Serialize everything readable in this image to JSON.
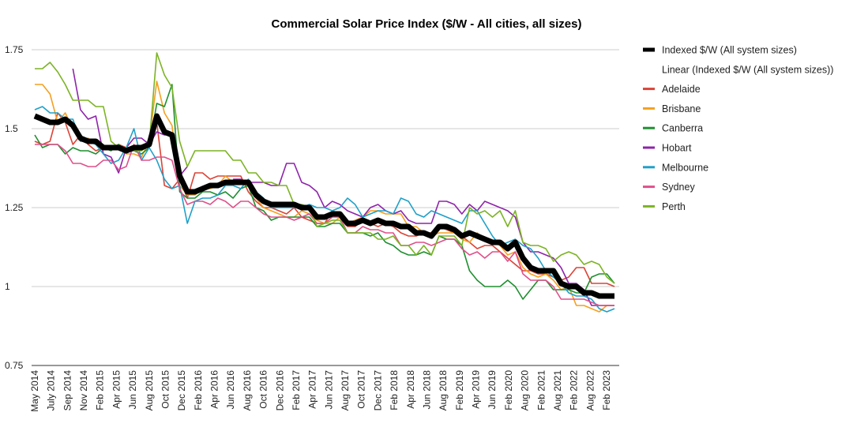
{
  "chart_data": {
    "type": "line",
    "title": "Commercial Solar Price Index ($/W - All cities, all sizes)",
    "xlabel": "",
    "ylabel": "",
    "ylim": [
      0.75,
      1.75
    ],
    "y_ticks": [
      "0.75",
      "1",
      "1.25",
      "1.5",
      "1.75"
    ],
    "y_tick_values": [
      0.75,
      1.0,
      1.25,
      1.5,
      1.75
    ],
    "grid": true,
    "legend_position": "right",
    "x_start": "2014-05",
    "x_tick_labels": [
      "May 2014",
      "July 2014",
      "Sep 2014",
      "Nov 2014",
      "Feb 2015",
      "Apr 2015",
      "Jun 2015",
      "Aug 2015",
      "Oct 2015",
      "Dec 2015",
      "Feb 2016",
      "Apr 2016",
      "Jun 2016",
      "Aug 2016",
      "Oct 2016",
      "Dec 2016",
      "Feb 2017",
      "Apr 2017",
      "Jun 2017",
      "Aug 2017",
      "Oct 2017",
      "Dec 2017",
      "Feb 2018",
      "Apr 2018",
      "Jun 2018",
      "Aug 2018",
      "Feb 2019",
      "Apr 2019",
      "Jun 2019",
      "Feb 2020",
      "Aug 2020",
      "Feb 2021",
      "Aug 2021",
      "Feb 2022",
      "Aug 2022",
      "Feb 2023"
    ],
    "series": [
      {
        "name": "Indexed $/W (All system sizes)",
        "color": "#000000",
        "width": 7,
        "values": [
          1.54,
          1.53,
          1.52,
          1.52,
          1.53,
          1.51,
          1.47,
          1.46,
          1.46,
          1.44,
          1.44,
          1.44,
          1.43,
          1.44,
          1.44,
          1.45,
          1.54,
          1.49,
          1.48,
          1.35,
          1.3,
          1.3,
          1.31,
          1.32,
          1.32,
          1.33,
          1.33,
          1.33,
          1.33,
          1.29,
          1.27,
          1.26,
          1.26,
          1.26,
          1.26,
          1.25,
          1.25,
          1.22,
          1.22,
          1.23,
          1.23,
          1.2,
          1.2,
          1.21,
          1.2,
          1.21,
          1.2,
          1.2,
          1.19,
          1.19,
          1.17,
          1.17,
          1.16,
          1.19,
          1.19,
          1.18,
          1.16,
          1.17,
          1.16,
          1.15,
          1.14,
          1.14,
          1.12,
          1.14,
          1.09,
          1.06,
          1.05,
          1.05,
          1.05,
          1.01,
          1.0,
          1.0,
          0.98,
          0.98,
          0.97,
          0.97,
          0.97
        ]
      },
      {
        "name": "Linear (Indexed $/W (All system sizes))",
        "color": "#ffffff",
        "width": 1,
        "values": []
      },
      {
        "name": "Adelaide",
        "color": "#db4437",
        "width": 1.6,
        "values": [
          1.46,
          1.45,
          1.46,
          1.55,
          1.52,
          1.45,
          1.48,
          1.45,
          1.43,
          1.44,
          1.44,
          1.45,
          1.44,
          1.44,
          1.44,
          1.46,
          1.52,
          1.32,
          1.31,
          1.34,
          1.28,
          1.36,
          1.36,
          1.34,
          1.35,
          1.35,
          1.35,
          1.35,
          1.3,
          1.27,
          1.25,
          1.25,
          1.24,
          1.23,
          1.25,
          1.22,
          1.21,
          1.2,
          1.2,
          1.24,
          1.23,
          1.19,
          1.19,
          1.21,
          1.2,
          1.19,
          1.2,
          1.19,
          1.17,
          1.16,
          1.16,
          1.17,
          1.17,
          1.19,
          1.18,
          1.17,
          1.16,
          1.14,
          1.12,
          1.13,
          1.13,
          1.11,
          1.09,
          1.07,
          1.05,
          1.05,
          1.04,
          1.04,
          1.03,
          1.02,
          1.03,
          1.06,
          1.06,
          1.01,
          1.01,
          1.01,
          1.0
        ]
      },
      {
        "name": "Brisbane",
        "color": "#f4a020",
        "width": 1.6,
        "values": [
          1.64,
          1.64,
          1.61,
          1.52,
          1.55,
          1.5,
          1.46,
          1.47,
          1.45,
          1.44,
          1.44,
          1.44,
          1.42,
          1.42,
          1.41,
          1.46,
          1.65,
          1.55,
          1.51,
          1.32,
          1.29,
          1.29,
          1.31,
          1.31,
          1.32,
          1.35,
          1.33,
          1.33,
          1.32,
          1.28,
          1.25,
          1.24,
          1.23,
          1.22,
          1.22,
          1.24,
          1.23,
          1.21,
          1.2,
          1.2,
          1.22,
          1.2,
          1.21,
          1.22,
          1.24,
          1.24,
          1.23,
          1.23,
          1.23,
          1.19,
          1.19,
          1.17,
          1.16,
          1.17,
          1.17,
          1.17,
          1.15,
          1.14,
          1.17,
          1.15,
          1.14,
          1.13,
          1.1,
          1.11,
          1.06,
          1.04,
          1.03,
          1.04,
          1.02,
          0.99,
          1.0,
          0.94,
          0.94,
          0.93,
          0.92,
          0.94,
          0.94
        ]
      },
      {
        "name": "Canberra",
        "color": "#1f8f2f",
        "width": 1.6,
        "values": [
          1.48,
          1.44,
          1.45,
          1.45,
          1.42,
          1.44,
          1.43,
          1.43,
          1.42,
          1.44,
          1.43,
          1.45,
          1.43,
          1.43,
          1.42,
          1.44,
          1.58,
          1.57,
          1.64,
          1.3,
          1.28,
          1.28,
          1.3,
          1.3,
          1.29,
          1.3,
          1.28,
          1.31,
          1.32,
          1.25,
          1.24,
          1.21,
          1.22,
          1.22,
          1.22,
          1.22,
          1.22,
          1.19,
          1.19,
          1.2,
          1.2,
          1.17,
          1.17,
          1.17,
          1.16,
          1.17,
          1.14,
          1.13,
          1.11,
          1.1,
          1.1,
          1.11,
          1.1,
          1.16,
          1.15,
          1.15,
          1.13,
          1.05,
          1.02,
          1.0,
          1.0,
          1.0,
          1.02,
          1.0,
          0.96,
          0.99,
          1.02,
          1.02,
          0.99,
          0.99,
          0.99,
          0.98,
          0.98,
          1.03,
          1.04,
          1.04,
          1.01
        ]
      },
      {
        "name": "Hobart",
        "color": "#8e24aa",
        "width": 1.6,
        "values": [
          null,
          null,
          null,
          null,
          null,
          1.69,
          1.56,
          1.53,
          1.54,
          1.42,
          1.41,
          1.36,
          1.44,
          1.47,
          1.47,
          1.45,
          1.49,
          1.48,
          1.48,
          1.35,
          1.38,
          null,
          null,
          null,
          null,
          null,
          1.34,
          1.34,
          1.33,
          1.33,
          1.33,
          1.32,
          1.32,
          1.39,
          1.39,
          1.33,
          1.32,
          1.3,
          1.25,
          1.27,
          1.26,
          1.24,
          1.23,
          1.22,
          1.25,
          1.26,
          1.24,
          1.23,
          1.24,
          1.21,
          1.2,
          1.2,
          1.2,
          1.27,
          1.27,
          1.26,
          1.23,
          1.26,
          1.24,
          1.27,
          1.26,
          1.25,
          1.24,
          1.22,
          1.14,
          1.11,
          1.11,
          1.1,
          1.09,
          1.06,
          1.01,
          1.01,
          0.99,
          0.94,
          0.94,
          0.94,
          0.94
        ]
      },
      {
        "name": "Melbourne",
        "color": "#1fa0c8",
        "width": 1.6,
        "values": [
          1.56,
          1.57,
          1.55,
          1.55,
          1.53,
          1.53,
          1.46,
          1.46,
          1.45,
          1.42,
          1.39,
          1.4,
          1.44,
          1.5,
          1.4,
          1.44,
          1.4,
          1.34,
          1.31,
          1.32,
          1.2,
          1.27,
          1.28,
          1.28,
          1.29,
          1.32,
          1.32,
          1.31,
          1.34,
          1.3,
          1.28,
          1.25,
          1.25,
          1.25,
          1.25,
          1.25,
          1.26,
          1.25,
          1.25,
          1.24,
          1.25,
          1.28,
          1.26,
          1.22,
          1.23,
          1.24,
          1.24,
          1.23,
          1.28,
          1.27,
          1.23,
          1.22,
          1.24,
          1.23,
          1.22,
          1.21,
          1.2,
          1.24,
          1.24,
          1.2,
          1.16,
          1.13,
          1.14,
          1.15,
          1.13,
          1.12,
          1.09,
          1.05,
          1.03,
          1.01,
          0.98,
          0.97,
          0.97,
          0.96,
          0.93,
          0.92,
          0.93
        ]
      },
      {
        "name": "Sydney",
        "color": "#e0508a",
        "width": 1.6,
        "values": [
          1.45,
          1.45,
          1.45,
          1.45,
          1.43,
          1.39,
          1.39,
          1.38,
          1.38,
          1.4,
          1.4,
          1.37,
          1.38,
          1.45,
          1.4,
          1.4,
          1.41,
          1.41,
          1.4,
          1.31,
          1.26,
          1.27,
          1.27,
          1.26,
          1.28,
          1.27,
          1.25,
          1.27,
          1.27,
          1.25,
          1.23,
          1.22,
          1.22,
          1.22,
          1.21,
          1.22,
          1.23,
          1.2,
          1.2,
          1.22,
          1.22,
          1.17,
          1.17,
          1.19,
          1.18,
          1.18,
          1.17,
          1.17,
          1.13,
          1.13,
          1.14,
          1.14,
          1.13,
          1.14,
          1.15,
          1.15,
          1.12,
          1.1,
          1.11,
          1.09,
          1.11,
          1.11,
          1.08,
          1.11,
          1.04,
          1.02,
          1.02,
          1.02,
          1.0,
          0.96,
          0.96,
          0.96,
          0.96,
          0.95,
          0.94,
          0.94,
          0.94
        ]
      },
      {
        "name": "Perth",
        "color": "#7cb324",
        "width": 1.6,
        "values": [
          1.69,
          1.69,
          1.71,
          1.68,
          1.64,
          1.59,
          1.59,
          1.59,
          1.57,
          1.57,
          1.46,
          1.44,
          1.44,
          1.43,
          1.43,
          1.45,
          1.74,
          1.67,
          1.63,
          1.46,
          1.38,
          1.43,
          1.43,
          1.43,
          1.43,
          1.43,
          1.4,
          1.4,
          1.36,
          1.36,
          1.33,
          1.33,
          1.32,
          1.32,
          1.26,
          1.26,
          1.25,
          1.19,
          1.2,
          1.21,
          1.21,
          1.17,
          1.17,
          1.17,
          1.17,
          1.15,
          1.15,
          1.16,
          1.13,
          1.13,
          1.1,
          1.13,
          1.1,
          1.16,
          1.16,
          1.16,
          1.13,
          1.25,
          1.23,
          1.24,
          1.22,
          1.24,
          1.19,
          1.24,
          1.14,
          1.13,
          1.13,
          1.12,
          1.08,
          1.1,
          1.11,
          1.1,
          1.07,
          1.08,
          1.07,
          1.03,
          1.01
        ]
      }
    ]
  }
}
